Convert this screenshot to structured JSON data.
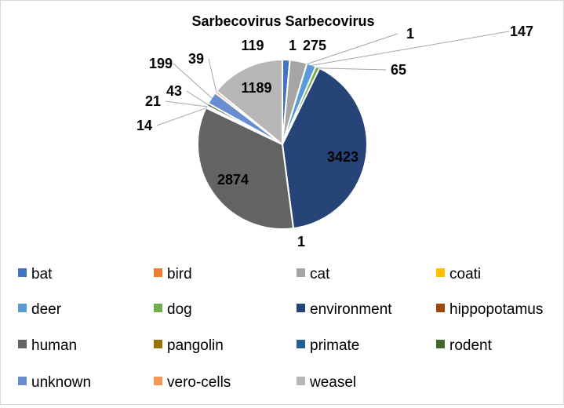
{
  "chart_data": {
    "type": "pie",
    "title": "Sarbecovirus Sarbecovirus",
    "legend_position": "bottom",
    "series": [
      {
        "name": "bat",
        "value": 119,
        "color": "#4472C4"
      },
      {
        "name": "bird",
        "value": 1,
        "color": "#ED7D31"
      },
      {
        "name": "cat",
        "value": 275,
        "color": "#A5A5A5"
      },
      {
        "name": "coati",
        "value": 1,
        "color": "#FFC000"
      },
      {
        "name": "deer",
        "value": 147,
        "color": "#5B9BD5"
      },
      {
        "name": "dog",
        "value": 65,
        "color": "#70AD47"
      },
      {
        "name": "environment",
        "value": 3423,
        "color": "#264478"
      },
      {
        "name": "hippopotamus",
        "value": 1,
        "color": "#9E480E"
      },
      {
        "name": "human",
        "value": 2874,
        "color": "#636363"
      },
      {
        "name": "pangolin",
        "value": 14,
        "color": "#997300"
      },
      {
        "name": "primate",
        "value": 21,
        "color": "#255E91"
      },
      {
        "name": "rodent",
        "value": 43,
        "color": "#43682B"
      },
      {
        "name": "unknown",
        "value": 199,
        "color": "#698ED0"
      },
      {
        "name": "vero-cells",
        "value": 39,
        "color": "#F1975A"
      },
      {
        "name": "weasel",
        "value": 1189,
        "color": "#B7B7B7"
      }
    ]
  }
}
